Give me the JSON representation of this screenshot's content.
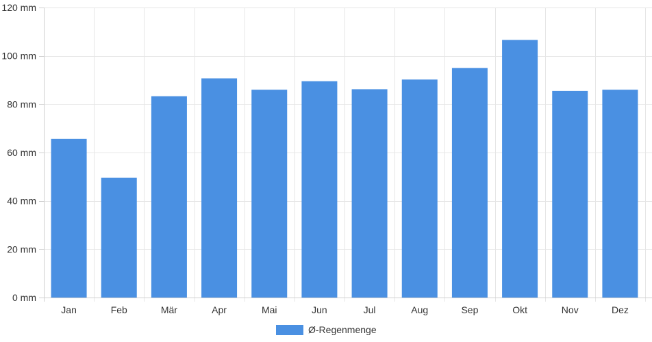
{
  "chart_data": {
    "type": "bar",
    "title": "",
    "xlabel": "",
    "ylabel": "",
    "categories": [
      "Jan",
      "Feb",
      "Mär",
      "Apr",
      "Mai",
      "Jun",
      "Jul",
      "Aug",
      "Sep",
      "Okt",
      "Nov",
      "Dez"
    ],
    "series": [
      {
        "name": "Ø-Regenmenge",
        "color": "#4a90e2",
        "values": [
          65.7,
          49.6,
          83.3,
          90.7,
          86.0,
          89.5,
          86.2,
          90.2,
          95.0,
          106.6,
          85.5,
          86.0
        ]
      }
    ],
    "ylim": [
      0,
      120
    ],
    "yticks": [
      0,
      20,
      40,
      60,
      80,
      100,
      120
    ],
    "ytick_labels": [
      "0 mm",
      "20 mm",
      "40 mm",
      "60 mm",
      "80 mm",
      "100 mm",
      "120 mm"
    ],
    "grid": true,
    "legend_position": "bottom"
  }
}
